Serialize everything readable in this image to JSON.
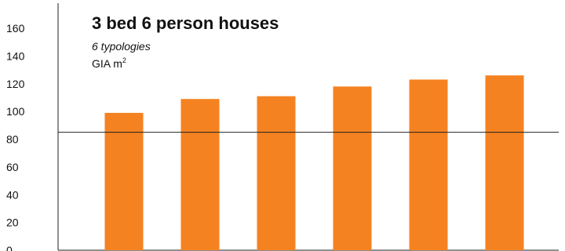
{
  "chart_data": {
    "type": "bar",
    "title": "3 bed 6 person houses",
    "subtitle": "6 typologies",
    "ylabel_text": "GIA m",
    "ylabel_superscript": "2",
    "categories": [
      "",
      "",
      "",
      "",
      "",
      ""
    ],
    "values": [
      99,
      109,
      111,
      118,
      123,
      126
    ],
    "ylim": [
      0,
      170
    ],
    "yticks": [
      0,
      20,
      40,
      60,
      80,
      100,
      120,
      140,
      160
    ],
    "ytick_labels": [
      "0",
      "20",
      "40",
      "60",
      "80",
      "100",
      "120",
      "140",
      "160"
    ],
    "reference_line": 85,
    "grid": false,
    "legend": "none"
  },
  "colors": {
    "bar": "#f58220",
    "axis": "#222222",
    "reference_line": "#222222",
    "text": "#111111"
  }
}
